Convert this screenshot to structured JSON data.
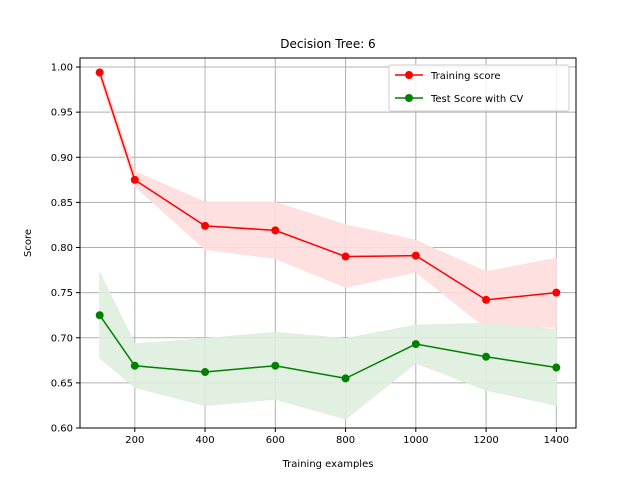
{
  "chart_data": {
    "type": "line",
    "title": "Decision Tree: 6",
    "xlabel": "Training examples",
    "ylabel": "Score",
    "xlim": [
      44,
      1456
    ],
    "ylim": [
      0.6,
      1.01
    ],
    "xticks": [
      200,
      400,
      600,
      800,
      1000,
      1200,
      1400
    ],
    "yticks": [
      0.6,
      0.65,
      0.7,
      0.75,
      0.8,
      0.85,
      0.9,
      0.95,
      1.0
    ],
    "grid": true,
    "legend_position": "top-right",
    "x": [
      100,
      200,
      400,
      600,
      800,
      1000,
      1200,
      1400
    ],
    "series": [
      {
        "name": "Training score",
        "color": "#ff0000",
        "band_color": "#ffdddd",
        "values": [
          0.994,
          0.875,
          0.824,
          0.819,
          0.79,
          0.791,
          0.742,
          0.75
        ],
        "lower": [
          0.988,
          0.868,
          0.798,
          0.788,
          0.756,
          0.773,
          0.711,
          0.712
        ],
        "upper": [
          0.999,
          0.884,
          0.85,
          0.85,
          0.825,
          0.808,
          0.773,
          0.788
        ]
      },
      {
        "name": "Test Score with CV",
        "color": "#008000",
        "band_color": "#dfeedf",
        "values": [
          0.725,
          0.669,
          0.662,
          0.669,
          0.655,
          0.693,
          0.679,
          0.667
        ],
        "lower": [
          0.678,
          0.645,
          0.625,
          0.632,
          0.61,
          0.672,
          0.642,
          0.625
        ],
        "upper": [
          0.772,
          0.693,
          0.699,
          0.706,
          0.699,
          0.714,
          0.716,
          0.709
        ]
      }
    ]
  }
}
